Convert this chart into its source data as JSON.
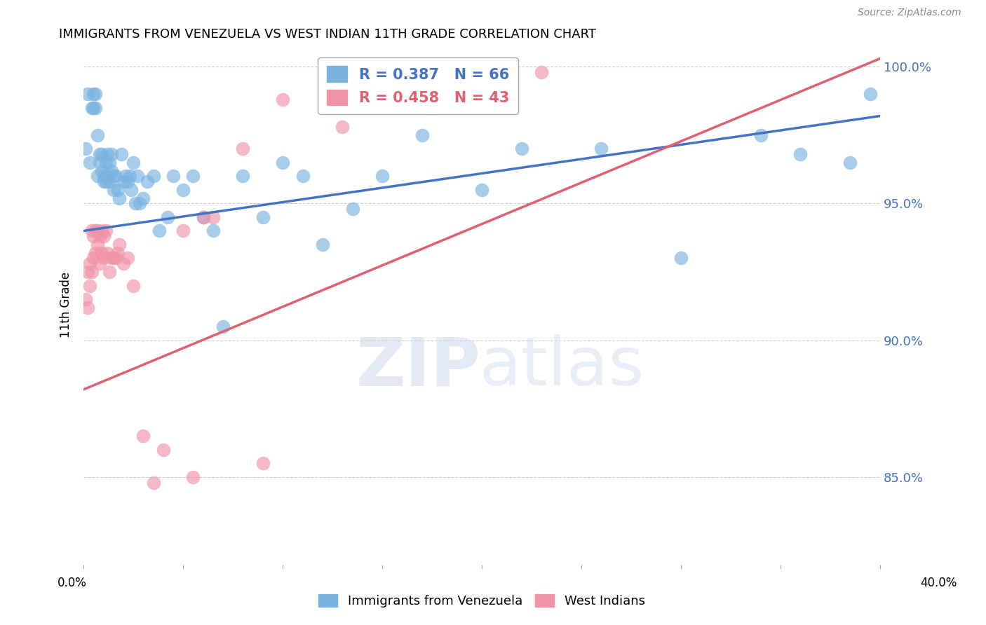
{
  "title": "IMMIGRANTS FROM VENEZUELA VS WEST INDIAN 11TH GRADE CORRELATION CHART",
  "source": "Source: ZipAtlas.com",
  "ylabel": "11th Grade",
  "xlim": [
    0.0,
    0.4
  ],
  "ylim": [
    0.818,
    1.008
  ],
  "yticks": [
    0.85,
    0.9,
    0.95,
    1.0
  ],
  "ytick_labels": [
    "85.0%",
    "90.0%",
    "95.0%",
    "100.0%"
  ],
  "xticks": [
    0.0,
    0.05,
    0.1,
    0.15,
    0.2,
    0.25,
    0.3,
    0.35,
    0.4
  ],
  "blue_R": 0.387,
  "blue_N": 66,
  "pink_R": 0.458,
  "pink_N": 43,
  "blue_color": "#7ab3e0",
  "pink_color": "#f093a8",
  "blue_line_color": "#4472c4",
  "pink_line_color": "#e06070",
  "blue_line_y0": 0.94,
  "blue_line_y1": 0.982,
  "pink_line_y0": 0.882,
  "pink_line_y1": 1.003,
  "blue_x": [
    0.001,
    0.002,
    0.003,
    0.004,
    0.005,
    0.005,
    0.006,
    0.006,
    0.007,
    0.007,
    0.008,
    0.008,
    0.009,
    0.009,
    0.01,
    0.01,
    0.011,
    0.011,
    0.012,
    0.012,
    0.013,
    0.013,
    0.014,
    0.014,
    0.015,
    0.015,
    0.016,
    0.017,
    0.018,
    0.019,
    0.02,
    0.021,
    0.022,
    0.023,
    0.024,
    0.025,
    0.026,
    0.027,
    0.028,
    0.03,
    0.032,
    0.035,
    0.038,
    0.042,
    0.045,
    0.05,
    0.055,
    0.06,
    0.065,
    0.07,
    0.08,
    0.09,
    0.1,
    0.11,
    0.12,
    0.135,
    0.15,
    0.17,
    0.2,
    0.22,
    0.26,
    0.3,
    0.34,
    0.36,
    0.385,
    0.395
  ],
  "blue_y": [
    0.97,
    0.99,
    0.965,
    0.985,
    0.985,
    0.99,
    0.985,
    0.99,
    0.96,
    0.975,
    0.968,
    0.965,
    0.968,
    0.962,
    0.958,
    0.96,
    0.965,
    0.958,
    0.968,
    0.96,
    0.965,
    0.958,
    0.962,
    0.968,
    0.96,
    0.955,
    0.96,
    0.955,
    0.952,
    0.968,
    0.958,
    0.96,
    0.958,
    0.96,
    0.955,
    0.965,
    0.95,
    0.96,
    0.95,
    0.952,
    0.958,
    0.96,
    0.94,
    0.945,
    0.96,
    0.955,
    0.96,
    0.945,
    0.94,
    0.905,
    0.96,
    0.945,
    0.965,
    0.96,
    0.935,
    0.948,
    0.96,
    0.975,
    0.955,
    0.97,
    0.97,
    0.93,
    0.975,
    0.968,
    0.965,
    0.99
  ],
  "pink_x": [
    0.001,
    0.002,
    0.002,
    0.003,
    0.003,
    0.004,
    0.004,
    0.005,
    0.005,
    0.006,
    0.006,
    0.007,
    0.007,
    0.008,
    0.008,
    0.009,
    0.009,
    0.01,
    0.01,
    0.011,
    0.012,
    0.013,
    0.014,
    0.015,
    0.016,
    0.017,
    0.018,
    0.02,
    0.022,
    0.025,
    0.03,
    0.035,
    0.04,
    0.05,
    0.055,
    0.06,
    0.065,
    0.08,
    0.09,
    0.1,
    0.13,
    0.175,
    0.23
  ],
  "pink_y": [
    0.915,
    0.925,
    0.912,
    0.928,
    0.92,
    0.94,
    0.925,
    0.938,
    0.93,
    0.94,
    0.932,
    0.94,
    0.935,
    0.938,
    0.928,
    0.94,
    0.932,
    0.938,
    0.93,
    0.94,
    0.932,
    0.925,
    0.93,
    0.93,
    0.93,
    0.932,
    0.935,
    0.928,
    0.93,
    0.92,
    0.865,
    0.848,
    0.86,
    0.94,
    0.85,
    0.945,
    0.945,
    0.97,
    0.855,
    0.988,
    0.978,
    0.985,
    0.998
  ]
}
